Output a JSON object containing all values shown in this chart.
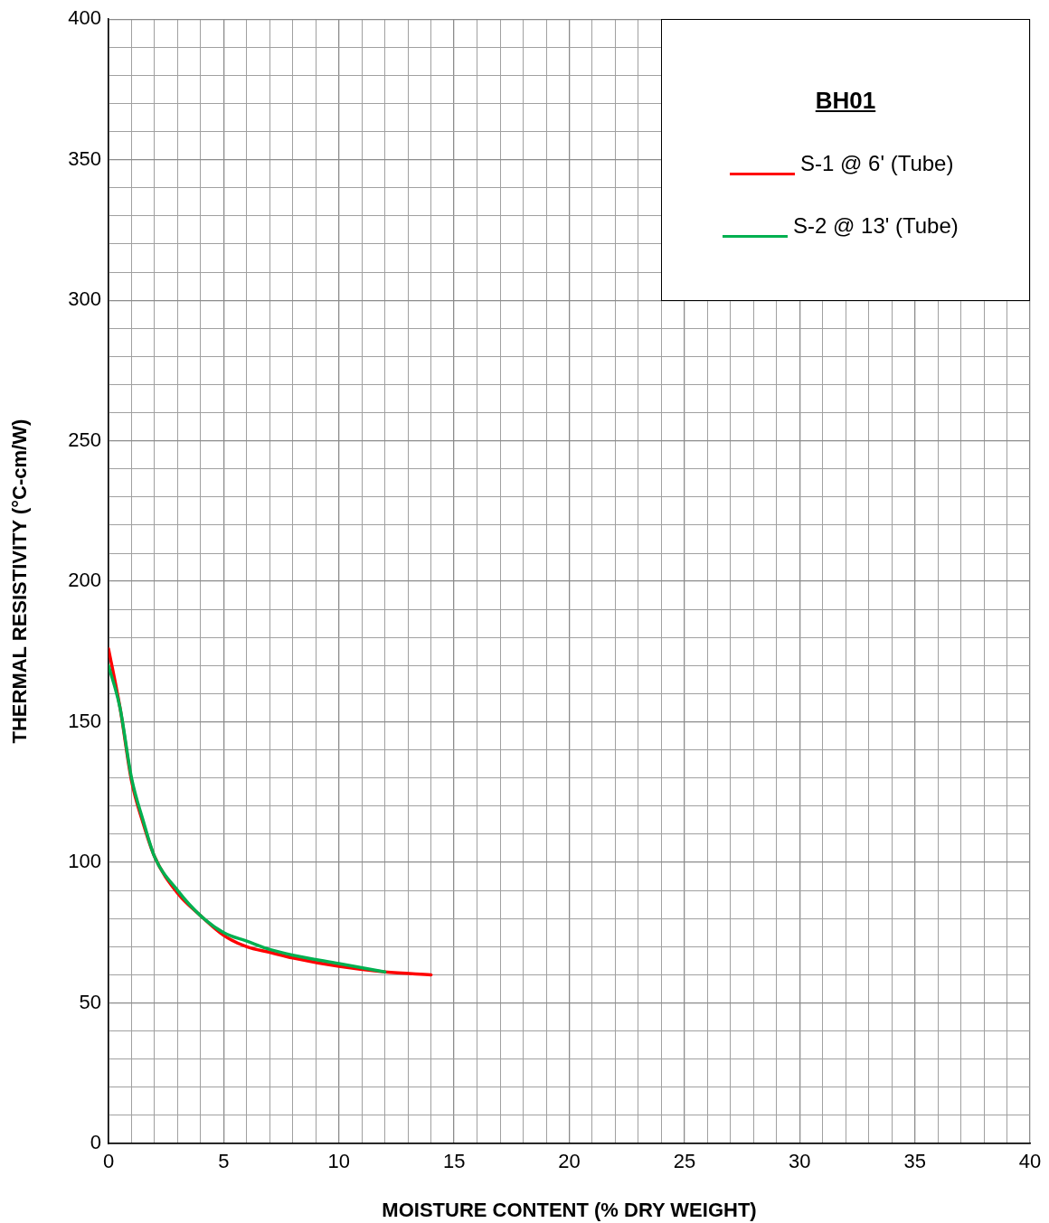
{
  "chart_data": {
    "type": "line",
    "xlabel": "MOISTURE CONTENT (% DRY WEIGHT)",
    "ylabel": "THERMAL RESISTIVITY (°C-cm/W)",
    "legend_title": "BH01",
    "legend": "top right",
    "grid": true,
    "marker": "none",
    "line_style": "solid",
    "xlim": [
      0,
      40
    ],
    "ylim": [
      0,
      400
    ],
    "xticks": [
      0,
      {
        "value": 1,
        "label": null
      },
      {
        "value": 2,
        "label": null
      },
      {
        "value": 3,
        "label": null
      },
      {
        "value": 4,
        "label": null
      },
      5,
      {
        "value": 6,
        "label": null
      },
      {
        "value": 7,
        "label": null
      },
      {
        "value": 8,
        "label": null
      },
      {
        "value": 9,
        "label": null
      },
      10,
      {
        "value": 11,
        "label": null
      },
      {
        "value": 12,
        "label": null
      },
      {
        "value": 13,
        "label": null
      },
      {
        "value": 14,
        "label": null
      },
      15,
      {
        "value": 16,
        "label": null
      },
      {
        "value": 17,
        "label": null
      },
      {
        "value": 18,
        "label": null
      },
      {
        "value": 19,
        "label": null
      },
      20,
      {
        "value": 21,
        "label": null
      },
      {
        "value": 22,
        "label": null
      },
      {
        "value": 23,
        "label": null
      },
      {
        "value": 24,
        "label": null
      },
      25,
      {
        "value": 26,
        "label": null
      },
      {
        "value": 27,
        "label": null
      },
      {
        "value": 28,
        "label": null
      },
      {
        "value": 29,
        "label": null
      },
      30,
      {
        "value": 31,
        "label": null
      },
      {
        "value": 32,
        "label": null
      },
      {
        "value": 33,
        "label": null
      },
      {
        "value": 34,
        "label": null
      },
      35,
      {
        "value": 36,
        "label": null
      },
      {
        "value": 37,
        "label": null
      },
      {
        "value": 38,
        "label": null
      },
      {
        "value": 39,
        "label": null
      },
      40
    ],
    "yticks": [
      0,
      {
        "value": 10,
        "label": null
      },
      {
        "value": 20,
        "label": null
      },
      {
        "value": 30,
        "label": null
      },
      {
        "value": 40,
        "label": null
      },
      50,
      {
        "value": 60,
        "label": null
      },
      {
        "value": 70,
        "label": null
      },
      {
        "value": 80,
        "label": null
      },
      {
        "value": 90,
        "label": null
      },
      100,
      {
        "value": 110,
        "label": null
      },
      {
        "value": 120,
        "label": null
      },
      {
        "value": 130,
        "label": null
      },
      {
        "value": 140,
        "label": null
      },
      150,
      {
        "value": 160,
        "label": null
      },
      {
        "value": 170,
        "label": null
      },
      {
        "value": 180,
        "label": null
      },
      {
        "value": 190,
        "label": null
      },
      200,
      {
        "value": 210,
        "label": null
      },
      {
        "value": 220,
        "label": null
      },
      {
        "value": 230,
        "label": null
      },
      {
        "value": 240,
        "label": null
      },
      250,
      {
        "value": 260,
        "label": null
      },
      {
        "value": 270,
        "label": null
      },
      {
        "value": 280,
        "label": null
      },
      {
        "value": 290,
        "label": null
      },
      300,
      {
        "value": 310,
        "label": null
      },
      {
        "value": 320,
        "label": null
      },
      {
        "value": 330,
        "label": null
      },
      {
        "value": 340,
        "label": null
      },
      350,
      {
        "value": 360,
        "label": null
      },
      {
        "value": 370,
        "label": null
      },
      {
        "value": 380,
        "label": null
      },
      {
        "value": 390,
        "label": null
      },
      400
    ],
    "series": [
      {
        "name": "S-1 @ 6' (Tube)",
        "color": "#ff0000",
        "x": [
          0,
          0.5,
          1,
          1.5,
          2,
          3,
          4,
          5,
          6,
          7,
          8,
          10,
          12,
          14
        ],
        "values": [
          176,
          155,
          129,
          114,
          102,
          89,
          81,
          74,
          70,
          68,
          66,
          63,
          61,
          60
        ]
      },
      {
        "name": "S-2 @ 13' (Tube)",
        "color": "#00b050",
        "x": [
          0,
          0.5,
          1,
          1.5,
          2,
          3,
          4,
          5,
          6,
          7,
          8,
          10,
          12
        ],
        "values": [
          170,
          155,
          130,
          115,
          102,
          90,
          81,
          75,
          72,
          69,
          67,
          64,
          61
        ]
      }
    ]
  }
}
